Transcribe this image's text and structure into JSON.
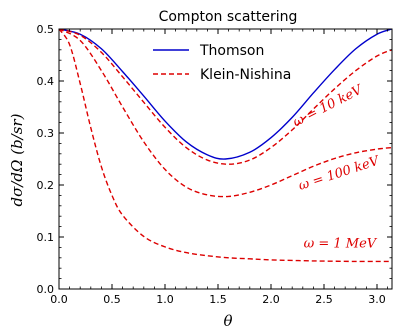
{
  "chart_data": {
    "type": "line",
    "title": "Compton scattering",
    "xlabel": "θ",
    "ylabel": "dσ/dΩ  (b/sr)",
    "xlim": [
      0,
      3.14159
    ],
    "ylim": [
      0,
      0.5
    ],
    "xticks": [
      "0.0",
      "0.5",
      "1.0",
      "1.5",
      "2.0",
      "2.5",
      "3.0"
    ],
    "yticks": [
      "0.0",
      "0.1",
      "0.2",
      "0.3",
      "0.4",
      "0.5"
    ],
    "grid": false,
    "legend": {
      "placement": "top-center",
      "entries": [
        {
          "label": "Thomson",
          "color": "#0000cc",
          "style": "solid"
        },
        {
          "label": "Klein-Nishina",
          "color": "#dd0000",
          "style": "dashed"
        }
      ]
    },
    "series": [
      {
        "name": "Thomson",
        "color": "#0000cc",
        "style": "solid",
        "x": [
          0.0,
          0.2,
          0.4,
          0.6,
          0.8,
          1.0,
          1.2,
          1.4,
          1.571,
          1.8,
          2.0,
          2.2,
          2.4,
          2.6,
          2.8,
          3.0,
          3.14
        ],
        "y": [
          0.5,
          0.49,
          0.462,
          0.418,
          0.371,
          0.323,
          0.283,
          0.258,
          0.25,
          0.263,
          0.291,
          0.33,
          0.377,
          0.422,
          0.462,
          0.49,
          0.5
        ]
      },
      {
        "name": "ω = 10 keV",
        "color": "#dd0000",
        "style": "dashed",
        "x": [
          0.0,
          0.2,
          0.4,
          0.6,
          0.8,
          1.0,
          1.2,
          1.4,
          1.6,
          1.8,
          2.0,
          2.2,
          2.4,
          2.6,
          2.8,
          3.0,
          3.14
        ],
        "y": [
          0.5,
          0.488,
          0.455,
          0.408,
          0.359,
          0.311,
          0.272,
          0.248,
          0.24,
          0.248,
          0.272,
          0.306,
          0.346,
          0.385,
          0.42,
          0.448,
          0.46
        ]
      },
      {
        "name": "ω = 100 keV",
        "color": "#dd0000",
        "style": "dashed",
        "x": [
          0.0,
          0.2,
          0.4,
          0.6,
          0.8,
          1.0,
          1.2,
          1.4,
          1.6,
          1.8,
          2.0,
          2.2,
          2.4,
          2.6,
          2.8,
          3.0,
          3.14
        ],
        "y": [
          0.5,
          0.478,
          0.42,
          0.35,
          0.283,
          0.23,
          0.196,
          0.181,
          0.178,
          0.186,
          0.2,
          0.218,
          0.236,
          0.251,
          0.262,
          0.269,
          0.272
        ]
      },
      {
        "name": "ω = 1 MeV",
        "color": "#dd0000",
        "style": "dashed",
        "x": [
          0.0,
          0.1,
          0.2,
          0.3,
          0.4,
          0.5,
          0.6,
          0.8,
          1.0,
          1.2,
          1.4,
          1.6,
          1.8,
          2.0,
          2.4,
          2.8,
          3.14
        ],
        "y": [
          0.5,
          0.47,
          0.395,
          0.31,
          0.235,
          0.18,
          0.142,
          0.101,
          0.081,
          0.07,
          0.064,
          0.06,
          0.058,
          0.056,
          0.054,
          0.053,
          0.053
        ]
      }
    ],
    "annotations": [
      {
        "text": "ω = 10 keV",
        "x": 2.55,
        "y": 0.345,
        "angle": -27
      },
      {
        "text": "ω = 100 keV",
        "x": 2.65,
        "y": 0.215,
        "angle": -18
      },
      {
        "text": "ω = 1 MeV",
        "x": 2.65,
        "y": 0.08,
        "angle": 0
      }
    ]
  }
}
